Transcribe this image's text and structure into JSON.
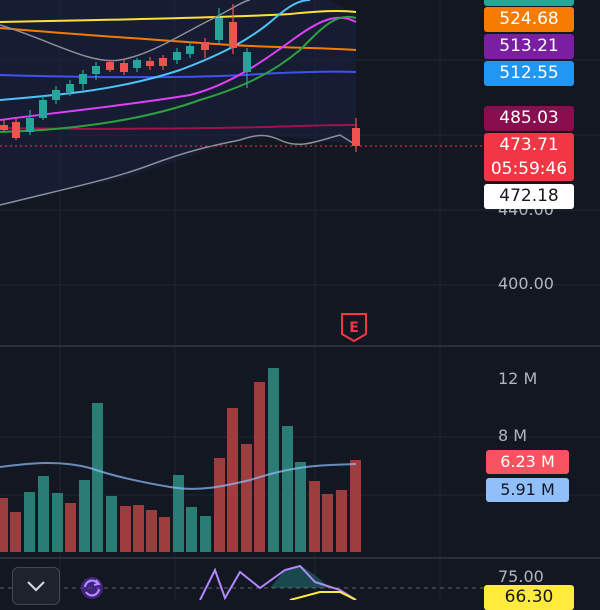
{
  "price_axis": {
    "labels": {
      "p440": "440.00",
      "p400": "400.00",
      "p75": "75.00"
    },
    "tags": {
      "green_top": "",
      "orange": "524.68",
      "purple": "513.21",
      "blue": "512.55",
      "maroon": "485.03",
      "current_price": "473.71",
      "countdown": "05:59:46",
      "white": "472.18",
      "rsi": "66.30"
    },
    "tag_colors": {
      "green_top": "#26a69a",
      "orange": "#f57c00",
      "purple": "#7b1fa2",
      "blue": "#2196f3",
      "maroon": "#880e4f",
      "current_price": "#f23645",
      "white": "#ffffff",
      "rsi": "#ffeb3b"
    }
  },
  "volume_axis": {
    "labels": {
      "v12": "12 M",
      "v8": "8 M"
    },
    "tags": {
      "volume": "6.23 M",
      "volume_ma": "5.91 M"
    },
    "tag_colors": {
      "volume": "#f7525f",
      "volume_ma": "#90bff9"
    }
  },
  "earnings_marker": {
    "letter": "E",
    "color": "#f23645"
  },
  "controls": {
    "collapse_icon": "chevron-down-icon",
    "sync_icon": "sync-icon"
  },
  "colors": {
    "background": "#131722",
    "up": "#26a69a",
    "down": "#ef5350",
    "grid": "#1f2433"
  }
}
